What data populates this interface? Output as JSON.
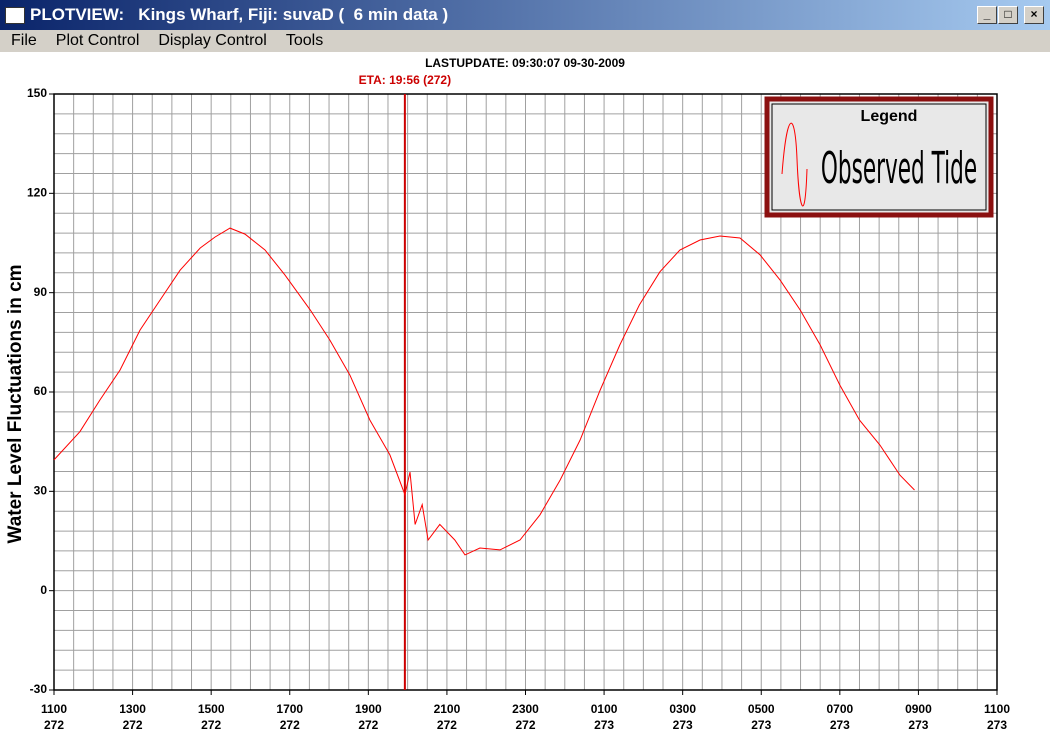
{
  "window": {
    "title": "PLOTVIEW:   Kings Wharf, Fiji: suvaD (  6 min data )",
    "menu": [
      "File",
      "Plot Control",
      "Display Control",
      "Tools"
    ]
  },
  "chart_data": {
    "type": "line",
    "subtitle": "LASTUPDATE: 09:30:07  09-30-2009",
    "ylabel": "Water Level Fluctuations in cm",
    "legend_title": "Legend",
    "legend": "top-right",
    "grid": true,
    "marker": {
      "x": 8.93,
      "label": "ETA: 19:56 (272)",
      "color": "#cc0000"
    },
    "x": [
      0,
      0.66,
      1.17,
      1.68,
      2.19,
      2.7,
      3.21,
      3.72,
      4.1,
      4.48,
      4.86,
      5.37,
      5.88,
      6.52,
      7.02,
      7.53,
      8.04,
      8.55,
      8.93,
      9.06,
      9.19,
      9.37,
      9.52,
      9.82,
      10.2,
      10.46,
      10.84,
      11.35,
      11.86,
      12.37,
      12.88,
      13.39,
      13.9,
      14.4,
      14.9,
      15.42,
      15.93,
      16.44,
      16.95,
      17.46,
      17.97,
      18.48,
      18.99,
      19.5,
      20,
      20.5,
      21.02,
      21.53,
      21.9
    ],
    "series": [
      {
        "name": "Observed Tide",
        "color": "#ff0000",
        "values": [
          39.5,
          48,
          57.6,
          66.6,
          78.7,
          87.8,
          96.8,
          103.5,
          106.8,
          109.5,
          107.7,
          102.9,
          95.3,
          84.8,
          75.7,
          65.1,
          51.5,
          41,
          29,
          35.8,
          20,
          26,
          15.3,
          20,
          15.3,
          10.8,
          12.9,
          12.3,
          15.3,
          22.9,
          33.4,
          45.5,
          60.6,
          74.2,
          86.3,
          96.3,
          102.9,
          105.9,
          107.1,
          106.5,
          101.4,
          93.8,
          84.8,
          74.2,
          62.1,
          51.5,
          44,
          34.9,
          30.4
        ]
      }
    ],
    "xlim": [
      0,
      24
    ],
    "xticks": [
      {
        "value": 0,
        "label": "1100"
      },
      {
        "value": 2,
        "label": "1300"
      },
      {
        "value": 4,
        "label": "1500"
      },
      {
        "value": 6,
        "label": "1700"
      },
      {
        "value": 8,
        "label": "1900"
      },
      {
        "value": 10,
        "label": "2100"
      },
      {
        "value": 12,
        "label": "2300"
      },
      {
        "value": 14,
        "label": "0100"
      },
      {
        "value": 16,
        "label": "0300"
      },
      {
        "value": 18,
        "label": "0500"
      },
      {
        "value": 20,
        "label": "0700"
      },
      {
        "value": 22,
        "label": "0900"
      },
      {
        "value": 24,
        "label": "1100"
      }
    ],
    "xtick_days": [
      "272",
      "272",
      "272",
      "272",
      "272",
      "272",
      "272",
      "273",
      "273",
      "273",
      "273",
      "273",
      "273"
    ],
    "xgrid": [
      0,
      0.5,
      1,
      1.5,
      2,
      2.5,
      3,
      3.5,
      4,
      4.5,
      5,
      5.5,
      6,
      6.5,
      7,
      7.5,
      8,
      8.5,
      9,
      9.5,
      10,
      10.5,
      11,
      11.5,
      12,
      12.5,
      13,
      13.5,
      14,
      14.5,
      15,
      15.5,
      16,
      16.5,
      17,
      17.5,
      18,
      18.5,
      19,
      19.5,
      20,
      20.5,
      21,
      21.5,
      22,
      22.5,
      23,
      23.5,
      24
    ],
    "ylim": [
      -30,
      150
    ],
    "yticks": [
      -30,
      0,
      30,
      60,
      90,
      120,
      150
    ],
    "ygrid": [
      -30,
      -24,
      -18,
      -12,
      -6,
      0,
      6,
      12,
      18,
      24,
      30,
      36,
      42,
      48,
      54,
      60,
      66,
      72,
      78,
      84,
      90,
      96,
      102,
      108,
      114,
      120,
      126,
      132,
      138,
      144,
      150
    ]
  }
}
